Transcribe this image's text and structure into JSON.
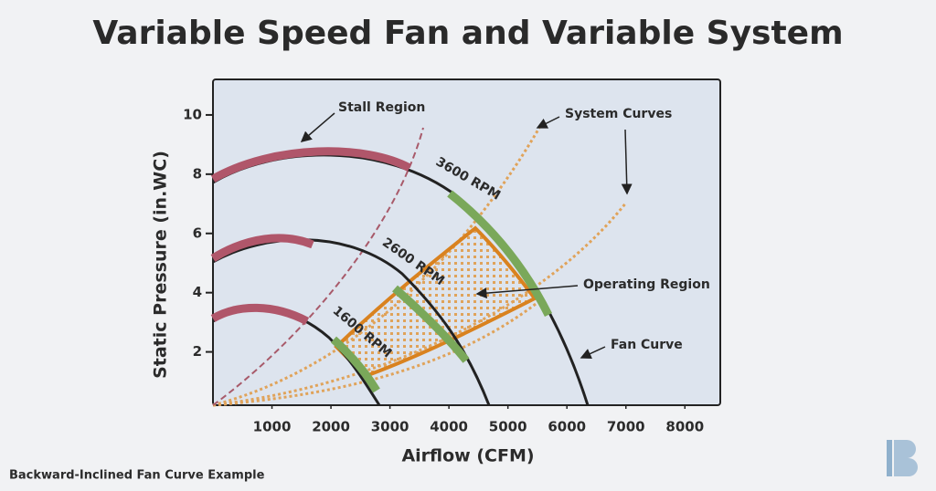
{
  "chart_data": {
    "type": "diagram",
    "title": "Variable Speed Fan and Variable System",
    "x_label": "Airflow (CFM)",
    "y_label": "Static Pressure (in.WC)",
    "xlim": [
      0,
      8600
    ],
    "ylim": [
      0.2,
      11.2
    ],
    "xticks": [
      1000,
      2000,
      3000,
      4000,
      5000,
      6000,
      7000,
      8000
    ],
    "yticks": [
      2,
      4,
      6,
      8,
      10
    ],
    "curve_labels": [
      "3600 RPM",
      "2600 RPM",
      "1600 RPM"
    ],
    "annotations": [
      "Stall Region",
      "System Curves",
      "Operating Region",
      "Fan Curve"
    ],
    "caption": "Backward-Inclined Fan Curve Example"
  }
}
